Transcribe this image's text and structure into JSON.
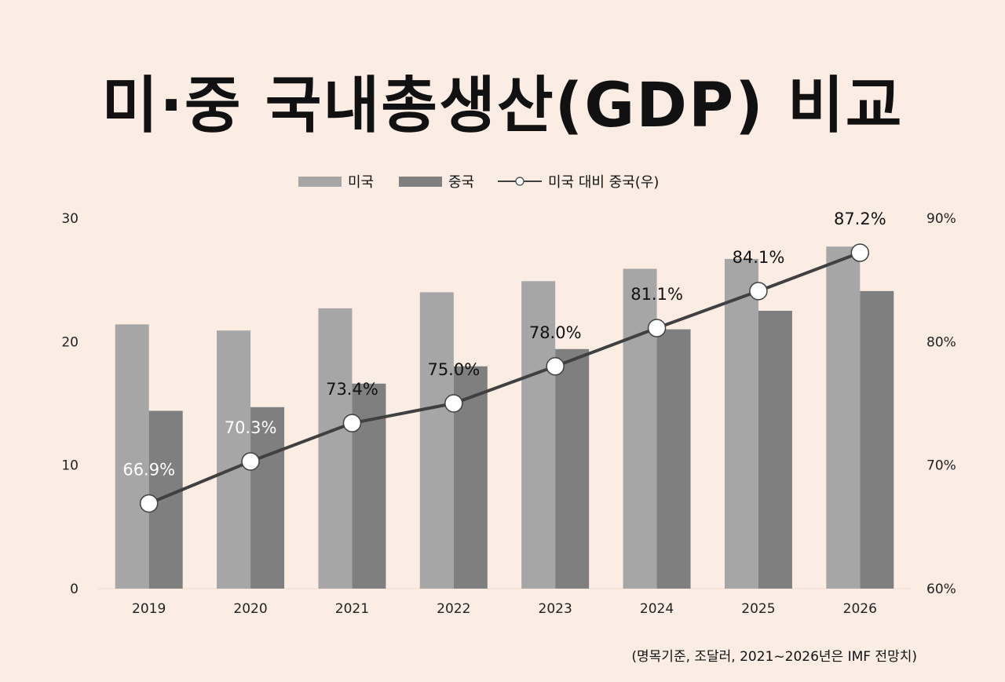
{
  "title": "미·중 국내총생산(GDP) 비교",
  "note": "(명목기준,  조달러,  2021~2026년은   IMF 전망치)",
  "colors": {
    "background": "#fcede4",
    "us": "#a6a6a6",
    "china": "#7f7f7f",
    "line": "#404040",
    "marker": "#ffffff"
  },
  "chart_data": {
    "type": "bar",
    "categories": [
      "2019",
      "2020",
      "2021",
      "2022",
      "2023",
      "2024",
      "2025",
      "2026"
    ],
    "series": [
      {
        "name": "미국",
        "type": "bar",
        "axis": "left",
        "values": [
          21.4,
          20.9,
          22.7,
          24.0,
          24.9,
          25.9,
          26.7,
          27.7
        ]
      },
      {
        "name": "중국",
        "type": "bar",
        "axis": "left",
        "values": [
          14.4,
          14.7,
          16.6,
          18.0,
          19.4,
          21.0,
          22.5,
          24.1
        ]
      },
      {
        "name": "미국 대비 중국(우)",
        "type": "line",
        "axis": "right",
        "values": [
          66.9,
          70.3,
          73.4,
          75.0,
          78.0,
          81.1,
          84.1,
          87.2
        ]
      }
    ],
    "data_labels": [
      "66.9%",
      "70.3%",
      "73.4%",
      "75.0%",
      "78.0%",
      "81.1%",
      "84.1%",
      "87.2%"
    ],
    "y_left": {
      "ticks": [
        "0",
        "10",
        "20",
        "30"
      ],
      "ylim": [
        0,
        30
      ]
    },
    "y_right": {
      "ticks": [
        "60%",
        "70%",
        "80%",
        "90%"
      ],
      "ylim": [
        60,
        90
      ]
    },
    "legend_position": "top-center",
    "grid": false
  }
}
